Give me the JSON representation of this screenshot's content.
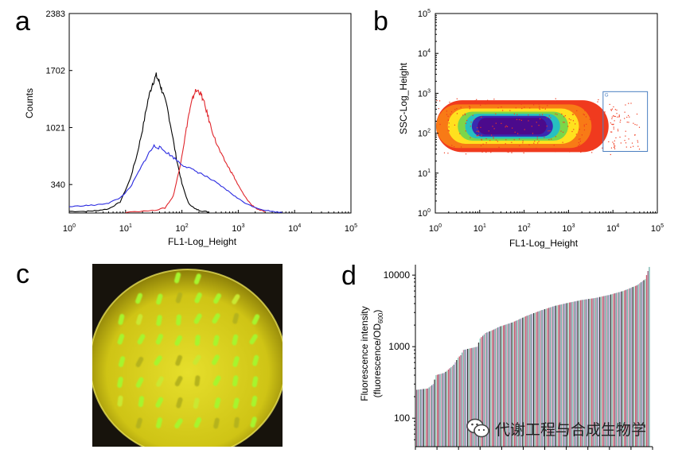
{
  "panel_labels": {
    "a": "a",
    "b": "b",
    "c": "c",
    "d": "d"
  },
  "colors": {
    "black": "#000000",
    "red": "#e0252b",
    "blue": "#2a2ae0",
    "gate": "#4a7fc0",
    "agar": "#d8d21a",
    "colony": "#9bf22a"
  },
  "chart_data": [
    {
      "id": "a",
      "type": "line",
      "title": "",
      "xlabel": "FL1-Log_Height",
      "ylabel": "Counts",
      "xscale": "log",
      "xlim": [
        1,
        100000
      ],
      "ylim": [
        0,
        2383
      ],
      "yticks": [
        340,
        1021,
        1702,
        2383
      ],
      "ytick_labels": [
        "340",
        "1021",
        "1702",
        "2383"
      ],
      "xticks": [
        1,
        10,
        100,
        1000,
        10000,
        100000
      ],
      "xtick_labels": [
        {
          "base": "10",
          "exp": "0"
        },
        {
          "base": "10",
          "exp": "1"
        },
        {
          "base": "10",
          "exp": "2"
        },
        {
          "base": "10",
          "exp": "3"
        },
        {
          "base": "10",
          "exp": "4"
        },
        {
          "base": "10",
          "exp": "5"
        }
      ],
      "series": [
        {
          "name": "black",
          "color": "#000000",
          "x": [
            1,
            2,
            3,
            5,
            8,
            12,
            16,
            20,
            25,
            30,
            35,
            40,
            45,
            55,
            65,
            80,
            100,
            130,
            170,
            220,
            300
          ],
          "y": [
            20,
            20,
            28,
            50,
            130,
            400,
            700,
            1000,
            1350,
            1550,
            1640,
            1560,
            1450,
            1250,
            1000,
            650,
            350,
            120,
            50,
            25,
            12
          ]
        },
        {
          "name": "red",
          "color": "#e0252b",
          "x": [
            10,
            30,
            50,
            70,
            90,
            110,
            130,
            150,
            170,
            200,
            230,
            270,
            320,
            400,
            500,
            650,
            800,
            1000,
            1300,
            1700,
            2200,
            3000
          ],
          "y": [
            12,
            28,
            60,
            200,
            520,
            850,
            1150,
            1330,
            1450,
            1460,
            1380,
            1230,
            1050,
            850,
            700,
            560,
            460,
            330,
            200,
            100,
            45,
            15
          ]
        },
        {
          "name": "blue",
          "color": "#2a2ae0",
          "x": [
            1,
            2,
            3,
            5,
            8,
            12,
            18,
            25,
            32,
            40,
            55,
            75,
            100,
            150,
            220,
            350,
            500,
            700,
            1000,
            1500,
            2500,
            4000,
            6000
          ],
          "y": [
            75,
            90,
            95,
            120,
            180,
            300,
            520,
            700,
            800,
            780,
            720,
            650,
            580,
            520,
            470,
            390,
            320,
            250,
            170,
            100,
            45,
            18,
            5
          ]
        }
      ]
    },
    {
      "id": "b",
      "type": "scatter",
      "title": "",
      "xlabel": "FL1-Log_Height",
      "ylabel": "SSC-Log_Height",
      "xscale": "log",
      "yscale": "log",
      "xlim": [
        1,
        100000
      ],
      "ylim": [
        1,
        100000
      ],
      "xticks": [
        1,
        10,
        100,
        1000,
        10000,
        100000
      ],
      "xtick_labels": [
        {
          "base": "10",
          "exp": "0"
        },
        {
          "base": "10",
          "exp": "1"
        },
        {
          "base": "10",
          "exp": "2"
        },
        {
          "base": "10",
          "exp": "3"
        },
        {
          "base": "10",
          "exp": "4"
        },
        {
          "base": "10",
          "exp": "5"
        }
      ],
      "yticks": [
        1,
        10,
        100,
        1000,
        10000,
        100000
      ],
      "ytick_labels": [
        {
          "base": "10",
          "exp": "0"
        },
        {
          "base": "10",
          "exp": "1"
        },
        {
          "base": "10",
          "exp": "2"
        },
        {
          "base": "10",
          "exp": "3"
        },
        {
          "base": "10",
          "exp": "4"
        },
        {
          "base": "10",
          "exp": "5"
        }
      ],
      "density_center": [
        50,
        150
      ],
      "density_x_range": [
        1,
        8000
      ],
      "density_y_range": [
        40,
        800
      ],
      "gate": {
        "name": "G",
        "x_range": [
          6000,
          60000
        ],
        "y_range": [
          35,
          1100
        ]
      }
    },
    {
      "id": "d",
      "type": "bar",
      "title": "",
      "xlabel": "",
      "ylabel": "Fluorescence intensity",
      "ylabel_line2": {
        "text": "(fluorescence/OD",
        "sub": "600",
        "close": ")"
      },
      "yscale": "log",
      "ylim": [
        40,
        14000
      ],
      "yticks": [
        100,
        1000,
        10000
      ],
      "ytick_labels": [
        "100",
        "1000",
        "10000"
      ],
      "bar_count": 170,
      "bar_colors": [
        "#9c5a7c",
        "#6fb0a8",
        "#c48aa8",
        "#5a8a8a",
        "#b8a0d0",
        "#3a3a3a",
        "#8fd0c0",
        "#c85a6a"
      ],
      "values_profile": [
        [
          0,
          250
        ],
        [
          8,
          260
        ],
        [
          12,
          300
        ],
        [
          14,
          400
        ],
        [
          20,
          430
        ],
        [
          22,
          460
        ],
        [
          27,
          560
        ],
        [
          30,
          700
        ],
        [
          32,
          760
        ],
        [
          34,
          900
        ],
        [
          44,
          1000
        ],
        [
          46,
          1300
        ],
        [
          50,
          1550
        ],
        [
          55,
          1700
        ],
        [
          60,
          1900
        ],
        [
          70,
          2200
        ],
        [
          80,
          2700
        ],
        [
          90,
          3200
        ],
        [
          100,
          3700
        ],
        [
          110,
          4100
        ],
        [
          120,
          4500
        ],
        [
          130,
          4800
        ],
        [
          140,
          5300
        ],
        [
          150,
          6000
        ],
        [
          160,
          7200
        ],
        [
          166,
          8800
        ],
        [
          169,
          13000
        ]
      ]
    }
  ],
  "panel_c": {
    "image": "fluorescent colonies on agar plate"
  },
  "watermark": {
    "icon": "wechat-icon",
    "text": "代谢工程与合成生物学"
  }
}
